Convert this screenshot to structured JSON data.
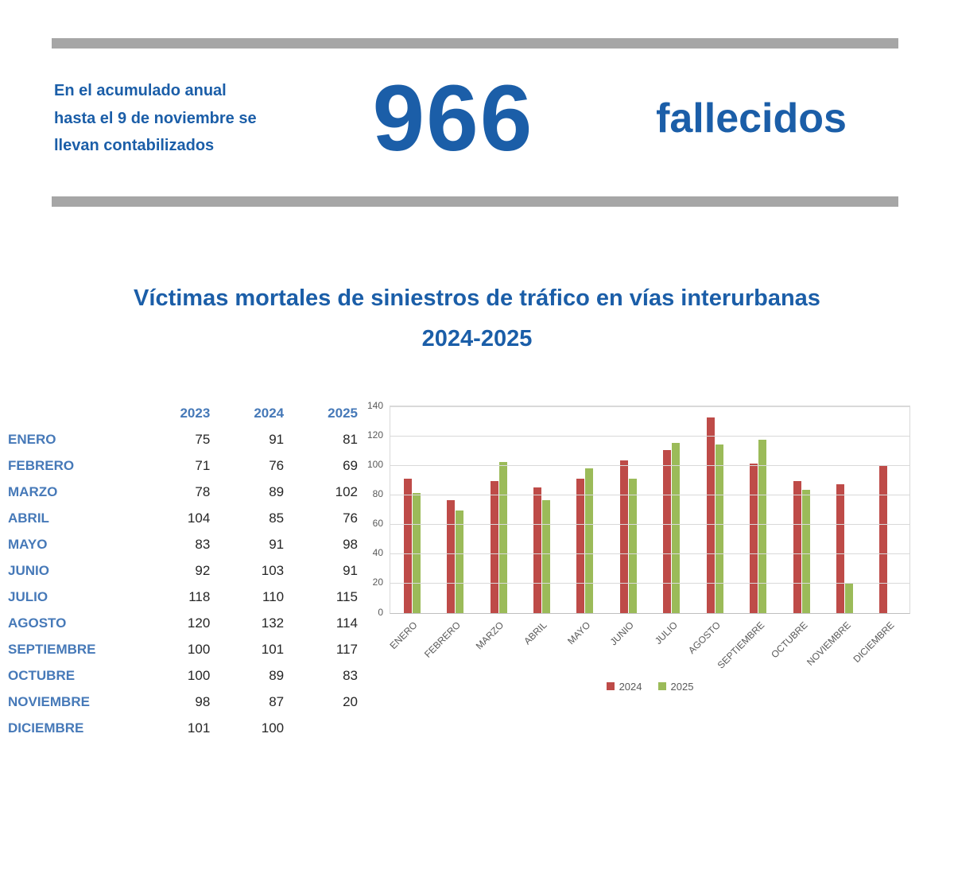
{
  "header": {
    "intro_text": "En el acumulado anual hasta el 9 de noviembre se llevan contabilizados",
    "big_number": "966",
    "big_label": "fallecidos"
  },
  "title": {
    "line1": "Víctimas mortales de siniestros de tráfico en vías interurbanas",
    "line2": "2024-2025"
  },
  "table": {
    "columns": [
      "2023",
      "2024",
      "2025"
    ],
    "rows": [
      {
        "month": "ENERO",
        "values": [
          75,
          91,
          81
        ]
      },
      {
        "month": "FEBRERO",
        "values": [
          71,
          76,
          69
        ]
      },
      {
        "month": "MARZO",
        "values": [
          78,
          89,
          102
        ]
      },
      {
        "month": "ABRIL",
        "values": [
          104,
          85,
          76
        ]
      },
      {
        "month": "MAYO",
        "values": [
          83,
          91,
          98
        ]
      },
      {
        "month": "JUNIO",
        "values": [
          92,
          103,
          91
        ]
      },
      {
        "month": "JULIO",
        "values": [
          118,
          110,
          115
        ]
      },
      {
        "month": "AGOSTO",
        "values": [
          120,
          132,
          114
        ]
      },
      {
        "month": "SEPTIEMBRE",
        "values": [
          100,
          101,
          117
        ]
      },
      {
        "month": "OCTUBRE",
        "values": [
          100,
          89,
          83
        ]
      },
      {
        "month": "NOVIEMBRE",
        "values": [
          98,
          87,
          20
        ]
      },
      {
        "month": "DICIEMBRE",
        "values": [
          101,
          100,
          null
        ]
      }
    ]
  },
  "chart_data": {
    "type": "bar",
    "categories": [
      "ENERO",
      "FEBRERO",
      "MARZO",
      "ABRIL",
      "MAYO",
      "JUNIO",
      "JULIO",
      "AGOSTO",
      "SEPTIEMBRE",
      "OCTUBRE",
      "NOVIEMBRE",
      "DICIEMBRE"
    ],
    "series": [
      {
        "name": "2024",
        "color": "#be4b48",
        "values": [
          91,
          76,
          89,
          85,
          91,
          103,
          110,
          132,
          101,
          89,
          87,
          100
        ]
      },
      {
        "name": "2025",
        "color": "#9bbb59",
        "values": [
          81,
          69,
          102,
          76,
          98,
          91,
          115,
          114,
          117,
          83,
          20,
          null
        ]
      }
    ],
    "title": "Víctimas mortales de siniestros de tráfico en vías interurbanas 2024-2025",
    "xlabel": "",
    "ylabel": "",
    "ylim": [
      0,
      140
    ],
    "ytick_step": 20,
    "grid": true,
    "legend_position": "bottom"
  },
  "colors": {
    "accent_blue": "#1b5ea8",
    "table_blue": "#4679b8",
    "divider_gray": "#a6a6a6",
    "series_2024": "#be4b48",
    "series_2025": "#9bbb59"
  }
}
